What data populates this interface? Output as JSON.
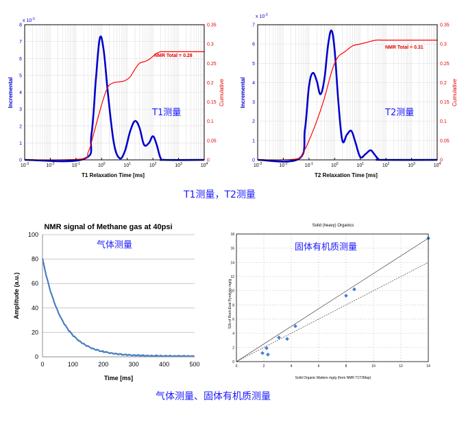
{
  "captions": {
    "top": "T1测量，T2测量",
    "bottom": "气体测量、固体有机质测量"
  },
  "colors": {
    "incremental": "#0000cc",
    "cumulative": "#ff0000",
    "annotation": "#1a1aff",
    "decay": "#4a7fc0",
    "scatter": "#3f7fd0"
  },
  "chart_data": [
    {
      "type": "line",
      "id": "t1",
      "xlabel": "T1 Relaxation Time [ms]",
      "ylabel_left": "Incremental",
      "ylabel_right": "Cumulative",
      "x_scale": "log",
      "xlim": [
        0.001,
        10000
      ],
      "x_ticks": [
        "10^-3",
        "10^-2",
        "10^-1",
        "10^0",
        "10^1",
        "10^2",
        "10^3",
        "10^4"
      ],
      "ylim_left": [
        0,
        8
      ],
      "y_left_ticks": [
        "0",
        "1",
        "2",
        "3",
        "4",
        "5",
        "6",
        "7",
        "8"
      ],
      "y_left_multiplier": "x 10^-3",
      "ylim_right": [
        0,
        0.35
      ],
      "y_right_ticks": [
        "0",
        "0.05",
        "0.1",
        "0.15",
        "0.2",
        "0.25",
        "0.3",
        "0.35"
      ],
      "annotation_total": "NMR Total = 0.28",
      "annotation_label": "T1测量",
      "series": [
        {
          "name": "Incremental",
          "x": [
            0.001,
            0.2,
            0.4,
            0.6,
            0.85,
            1.2,
            1.8,
            3,
            5,
            8,
            13,
            20,
            30,
            45,
            70,
            100,
            140,
            200,
            300,
            10000
          ],
          "values": [
            0,
            0.05,
            1.5,
            4.8,
            7.2,
            6.5,
            3.8,
            1.0,
            0.1,
            0.5,
            1.7,
            2.3,
            1.9,
            0.9,
            1.0,
            1.4,
            0.9,
            0.1,
            0,
            0
          ]
        },
        {
          "name": "Cumulative",
          "x": [
            0.001,
            0.15,
            0.3,
            0.5,
            0.8,
            1.2,
            1.8,
            3,
            5,
            8,
            13,
            20,
            30,
            50,
            70,
            100,
            140,
            200,
            300,
            10000
          ],
          "values": [
            0,
            0.002,
            0.02,
            0.07,
            0.12,
            0.16,
            0.19,
            0.2,
            0.202,
            0.205,
            0.215,
            0.235,
            0.25,
            0.255,
            0.26,
            0.268,
            0.276,
            0.28,
            0.28,
            0.28
          ]
        }
      ]
    },
    {
      "type": "line",
      "id": "t2",
      "xlabel": "T2 Relaxation Time [ms]",
      "ylabel_left": "Incremental",
      "ylabel_right": "Cumulative",
      "x_scale": "log",
      "xlim": [
        0.001,
        10000
      ],
      "x_ticks": [
        "10^-3",
        "10^-2",
        "10^-1",
        "10^0",
        "10^1",
        "10^2",
        "10^3",
        "10^4"
      ],
      "ylim_left": [
        0,
        7
      ],
      "y_left_ticks": [
        "0",
        "1",
        "2",
        "3",
        "4",
        "5",
        "6",
        "7"
      ],
      "y_left_multiplier": "x 10^-3",
      "ylim_right": [
        0,
        0.35
      ],
      "y_right_ticks": [
        "0",
        "0.05",
        "0.1",
        "0.15",
        "0.2",
        "0.25",
        "0.3",
        "0.35"
      ],
      "annotation_total": "NMR Total = 0.31",
      "annotation_label": "T2测量",
      "series": [
        {
          "name": "Incremental",
          "x": [
            0.001,
            0.04,
            0.07,
            0.1,
            0.14,
            0.2,
            0.28,
            0.4,
            0.55,
            0.75,
            1.0,
            1.4,
            2,
            3,
            4.5,
            6.5,
            10,
            16,
            25,
            35,
            50,
            70,
            10000
          ],
          "values": [
            0,
            0.05,
            1.6,
            3.8,
            4.5,
            4.1,
            3.4,
            4.2,
            5.9,
            6.7,
            5.7,
            3.0,
            1.0,
            1.3,
            1.5,
            0.9,
            0.15,
            0.3,
            0.5,
            0.3,
            0.05,
            0,
            0
          ]
        },
        {
          "name": "Cumulative",
          "x": [
            0.001,
            0.03,
            0.06,
            0.1,
            0.2,
            0.4,
            0.7,
            1.0,
            1.5,
            2.5,
            5,
            10,
            20,
            40,
            70,
            100,
            10000
          ],
          "values": [
            0,
            0.002,
            0.02,
            0.05,
            0.1,
            0.16,
            0.22,
            0.25,
            0.27,
            0.28,
            0.295,
            0.3,
            0.305,
            0.31,
            0.31,
            0.31,
            0.31
          ]
        }
      ]
    },
    {
      "type": "line",
      "id": "methane",
      "title": "NMR signal of Methane gas at 40psi",
      "xlabel": "Time [ms]",
      "ylabel": "Amplitude (a.u.)",
      "xlim": [
        0,
        500
      ],
      "x_ticks": [
        0,
        100,
        200,
        300,
        400,
        500
      ],
      "ylim": [
        0,
        100
      ],
      "y_ticks": [
        0,
        20,
        40,
        60,
        80,
        100
      ],
      "annotation_label": "气体测量",
      "series": [
        {
          "name": "Amplitude",
          "decay": {
            "a0": 80,
            "tau_ms": 65,
            "baseline": 0.5
          }
        }
      ]
    },
    {
      "type": "scatter",
      "id": "organics",
      "title": "Solid (heavy) Organics",
      "xlabel": "Solid Organic Matters mg/g (from NMR T1T2Map)",
      "ylabel": "S2b of Rock-Eval Pyrolysis mg/g",
      "xlim": [
        0,
        14
      ],
      "x_ticks": [
        0,
        2,
        4,
        6,
        8,
        10,
        12,
        14
      ],
      "ylim": [
        0,
        18
      ],
      "y_ticks": [
        0,
        2,
        4,
        6,
        8,
        10,
        12,
        14,
        16,
        18
      ],
      "annotation_label": "固体有机质测量",
      "points": {
        "x": [
          1.9,
          2.2,
          2.3,
          3.1,
          3.7,
          4.3,
          8.0,
          8.6,
          14.0
        ],
        "y": [
          1.2,
          1.9,
          1.0,
          3.4,
          3.2,
          5.0,
          9.3,
          10.2,
          17.4
        ]
      },
      "fit_line": {
        "x": [
          0,
          14
        ],
        "y": [
          0,
          17.4
        ]
      },
      "reference_line": {
        "x": [
          0,
          14
        ],
        "y": [
          0,
          14
        ]
      }
    }
  ]
}
